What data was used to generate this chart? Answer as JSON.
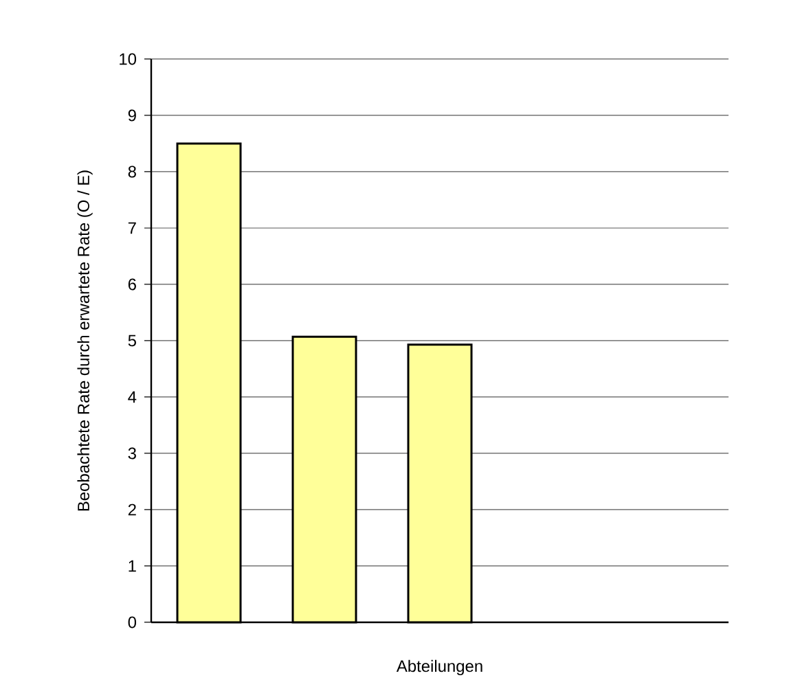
{
  "chart_data": {
    "type": "bar",
    "xlabel": "Abteilungen",
    "ylabel": "Beobachtete Rate durch erwartete Rate (O / E)",
    "categories": [
      null,
      null,
      null
    ],
    "values": [
      8.5,
      5.07,
      4.93
    ],
    "color": "#ffff99",
    "ylim": [
      0,
      10
    ],
    "yticks": [
      0,
      1,
      2,
      3,
      4,
      5,
      6,
      7,
      8,
      9,
      10
    ],
    "grid": "y"
  }
}
